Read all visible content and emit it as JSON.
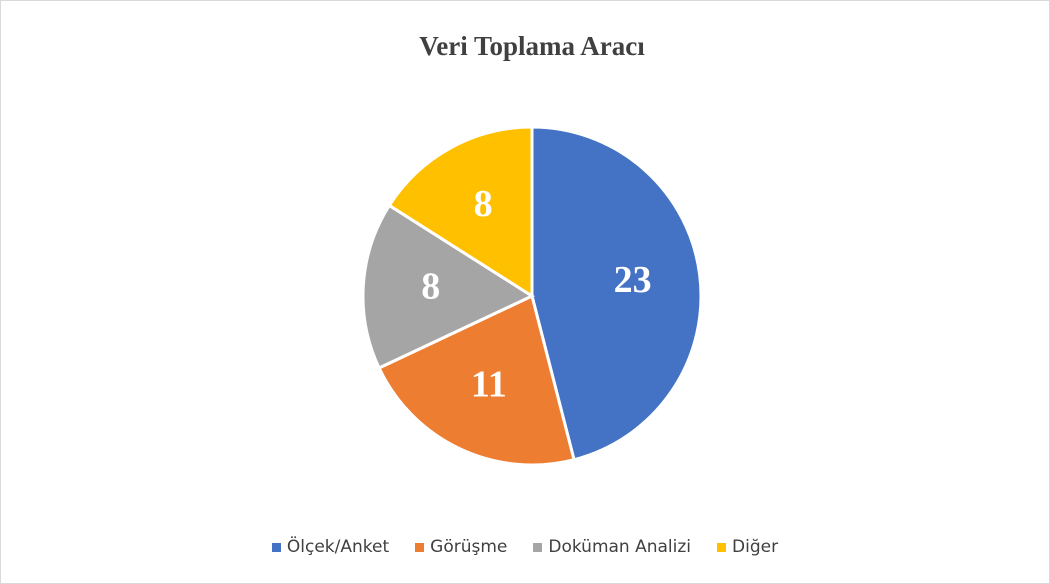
{
  "chart_data": {
    "type": "pie",
    "title": "Veri Toplama Aracı",
    "categories": [
      "Ölçek/Anket",
      "Görüşme",
      "Doküman Analizi",
      "Diğer"
    ],
    "values": [
      23,
      11,
      8,
      8
    ],
    "colors": [
      "#4472c4",
      "#ed7d31",
      "#a5a5a5",
      "#ffc000"
    ],
    "legend": "bottom"
  }
}
